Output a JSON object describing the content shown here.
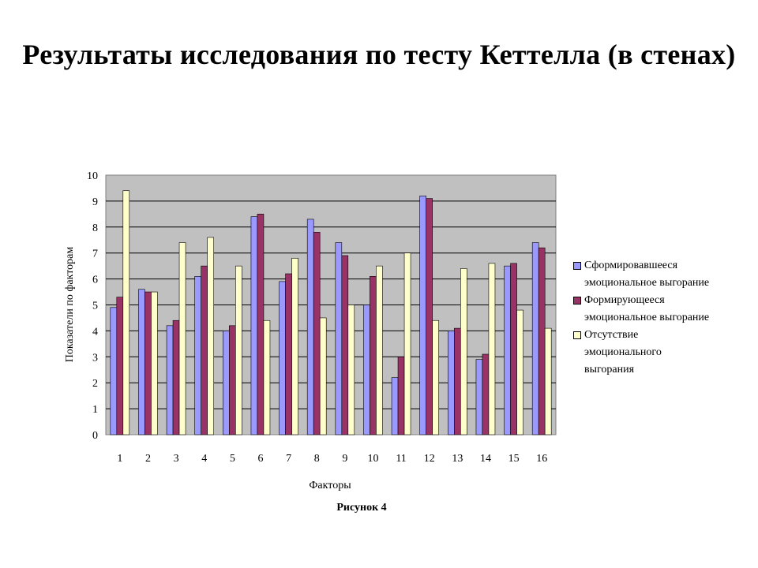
{
  "title": "Результаты исследования по тесту Кеттелла (в стенах)",
  "caption": "Рисунок 4",
  "chart_data": {
    "type": "bar",
    "xlabel": "Факторы",
    "ylabel": "Показатели по факторам",
    "ylim": [
      0,
      10
    ],
    "yticks": [
      0,
      1,
      2,
      3,
      4,
      5,
      6,
      7,
      8,
      9,
      10
    ],
    "grid": true,
    "legend": "right",
    "categories": [
      "1",
      "2",
      "3",
      "4",
      "5",
      "6",
      "7",
      "8",
      "9",
      "10",
      "11",
      "12",
      "13",
      "14",
      "15",
      "16"
    ],
    "series": [
      {
        "name": "Сформировавшееся эмоциональное выгорание",
        "color": "#9999ff",
        "values": [
          4.9,
          5.6,
          4.2,
          6.1,
          4.0,
          8.4,
          5.9,
          8.3,
          7.4,
          5.0,
          2.2,
          9.2,
          4.0,
          2.9,
          6.5,
          7.4
        ]
      },
      {
        "name": "Формирующееся эмоциональное выгорание",
        "color": "#993366",
        "values": [
          5.3,
          5.5,
          4.4,
          6.5,
          4.2,
          8.5,
          6.2,
          7.8,
          6.9,
          6.1,
          3.0,
          9.1,
          4.1,
          3.1,
          6.6,
          7.2
        ]
      },
      {
        "name": "Отсутствие эмоционального выгорания",
        "color": "#ffffcc",
        "values": [
          9.4,
          5.5,
          7.4,
          7.6,
          6.5,
          4.4,
          6.8,
          4.5,
          5.0,
          6.5,
          7.0,
          4.4,
          6.4,
          6.6,
          4.8,
          4.1
        ]
      }
    ]
  }
}
